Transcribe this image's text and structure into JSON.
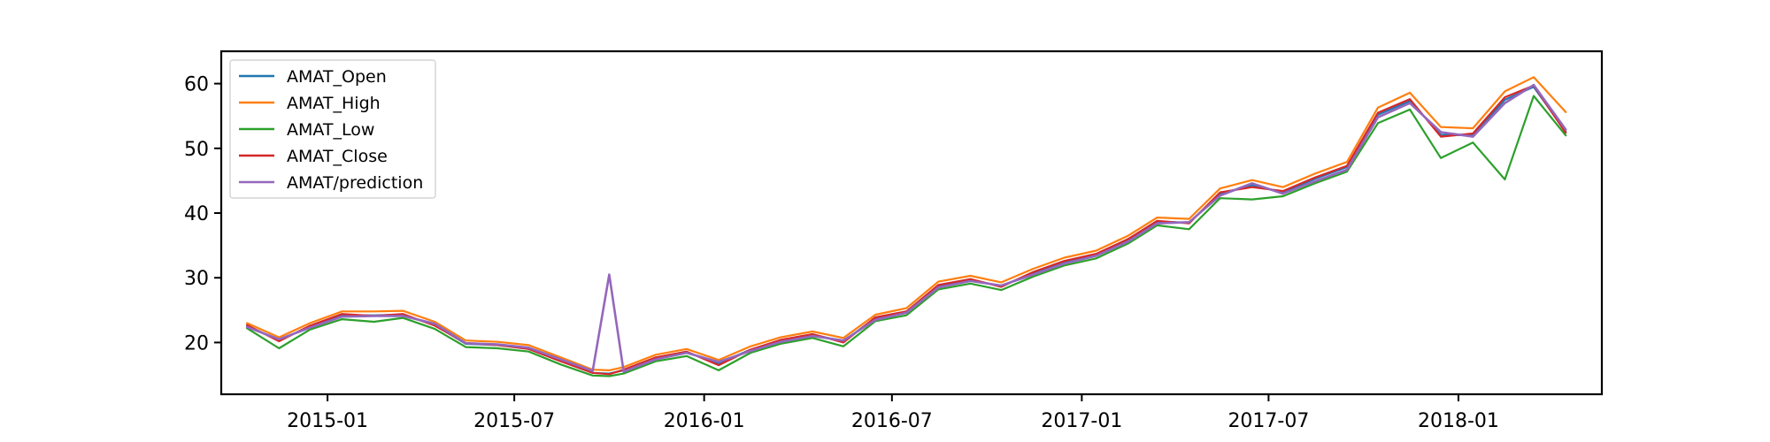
{
  "chart_data": {
    "type": "line",
    "title": "",
    "xlabel": "",
    "ylabel": "",
    "xlim": [
      "2014-09-20",
      "2018-05-20"
    ],
    "ylim": [
      12,
      65
    ],
    "grid": false,
    "legend_position": "top-left",
    "x_ticks": [
      "2015-01",
      "2015-07",
      "2016-01",
      "2016-07",
      "2017-01",
      "2017-07",
      "2018-01"
    ],
    "y_ticks": [
      20,
      30,
      40,
      50,
      60
    ],
    "dates": [
      "2014-10-15",
      "2014-11-15",
      "2014-12-15",
      "2015-01-15",
      "2015-02-15",
      "2015-03-15",
      "2015-04-15",
      "2015-05-15",
      "2015-06-15",
      "2015-07-15",
      "2015-08-15",
      "2015-09-15",
      "2015-10-01",
      "2015-10-15",
      "2015-11-15",
      "2015-12-15",
      "2016-01-15",
      "2016-02-15",
      "2016-03-15",
      "2016-04-15",
      "2016-05-15",
      "2016-06-15",
      "2016-07-15",
      "2016-08-15",
      "2016-09-15",
      "2016-10-15",
      "2016-11-15",
      "2016-12-15",
      "2017-01-15",
      "2017-02-15",
      "2017-03-15",
      "2017-04-15",
      "2017-05-15",
      "2017-06-15",
      "2017-07-15",
      "2017-08-15",
      "2017-09-15",
      "2017-10-15",
      "2017-11-15",
      "2017-12-15",
      "2018-01-15",
      "2018-02-15",
      "2018-03-15",
      "2018-04-15"
    ],
    "series": [
      {
        "name": "AMAT_Open",
        "color": "#1f77b4",
        "values": [
          22.6,
          20.3,
          22.5,
          24.2,
          24.2,
          24.3,
          22.7,
          19.8,
          19.6,
          19.1,
          17.2,
          15.3,
          15.2,
          15.7,
          17.6,
          18.5,
          16.8,
          18.9,
          20.3,
          21.2,
          20.2,
          23.8,
          24.8,
          28.8,
          29.7,
          28.7,
          30.8,
          32.5,
          33.6,
          35.9,
          38.7,
          38.5,
          43.0,
          44.3,
          43.2,
          45.3,
          47.1,
          55.2,
          57.3,
          52.1,
          52.0,
          57.5,
          59.5,
          52.6
        ]
      },
      {
        "name": "AMAT_High",
        "color": "#ff7f0e",
        "values": [
          23.0,
          20.8,
          23.0,
          24.8,
          24.8,
          24.9,
          23.2,
          20.3,
          20.1,
          19.6,
          17.7,
          15.8,
          15.7,
          16.2,
          18.1,
          19.0,
          17.3,
          19.4,
          20.8,
          21.7,
          20.7,
          24.3,
          25.3,
          29.4,
          30.3,
          29.3,
          31.4,
          33.1,
          34.2,
          36.5,
          39.3,
          39.1,
          43.8,
          45.1,
          44.0,
          46.1,
          47.9,
          56.3,
          58.6,
          53.3,
          53.1,
          58.8,
          61.0,
          55.6
        ]
      },
      {
        "name": "AMAT_Low",
        "color": "#2ca02c",
        "values": [
          22.2,
          19.1,
          22.0,
          23.6,
          23.2,
          23.8,
          22.1,
          19.3,
          19.1,
          18.6,
          16.6,
          14.9,
          14.8,
          15.2,
          17.1,
          17.9,
          15.7,
          18.4,
          19.8,
          20.7,
          19.4,
          23.3,
          24.2,
          28.2,
          29.1,
          28.1,
          30.2,
          31.9,
          33.0,
          35.3,
          38.1,
          37.5,
          42.3,
          42.1,
          42.6,
          44.6,
          46.4,
          53.9,
          56.0,
          48.5,
          50.9,
          45.2,
          58.1,
          52.0
        ]
      },
      {
        "name": "AMAT_Close",
        "color": "#d62728",
        "values": [
          22.7,
          20.2,
          22.6,
          24.4,
          24.1,
          24.4,
          22.6,
          19.9,
          19.6,
          19.0,
          17.1,
          15.3,
          15.1,
          15.8,
          17.7,
          18.6,
          16.5,
          18.9,
          20.4,
          21.3,
          20.0,
          23.9,
          24.8,
          28.9,
          29.8,
          28.6,
          30.9,
          32.6,
          33.7,
          36.0,
          38.8,
          38.4,
          43.2,
          44.0,
          43.4,
          45.5,
          47.3,
          55.5,
          57.6,
          51.8,
          52.3,
          57.9,
          59.7,
          52.4
        ]
      },
      {
        "name": "AMAT/prediction",
        "color": "#9467bd",
        "values": [
          22.4,
          20.5,
          22.3,
          24.0,
          24.1,
          24.1,
          22.9,
          19.9,
          19.7,
          19.2,
          17.4,
          15.6,
          30.5,
          15.5,
          17.4,
          18.4,
          17.0,
          18.7,
          20.1,
          21.0,
          20.3,
          23.5,
          24.6,
          28.5,
          29.5,
          28.8,
          30.5,
          32.2,
          33.4,
          35.6,
          38.4,
          38.6,
          42.7,
          44.6,
          43.0,
          44.9,
          46.7,
          54.8,
          57.0,
          52.5,
          51.8,
          57.0,
          59.8,
          52.9
        ]
      }
    ]
  }
}
